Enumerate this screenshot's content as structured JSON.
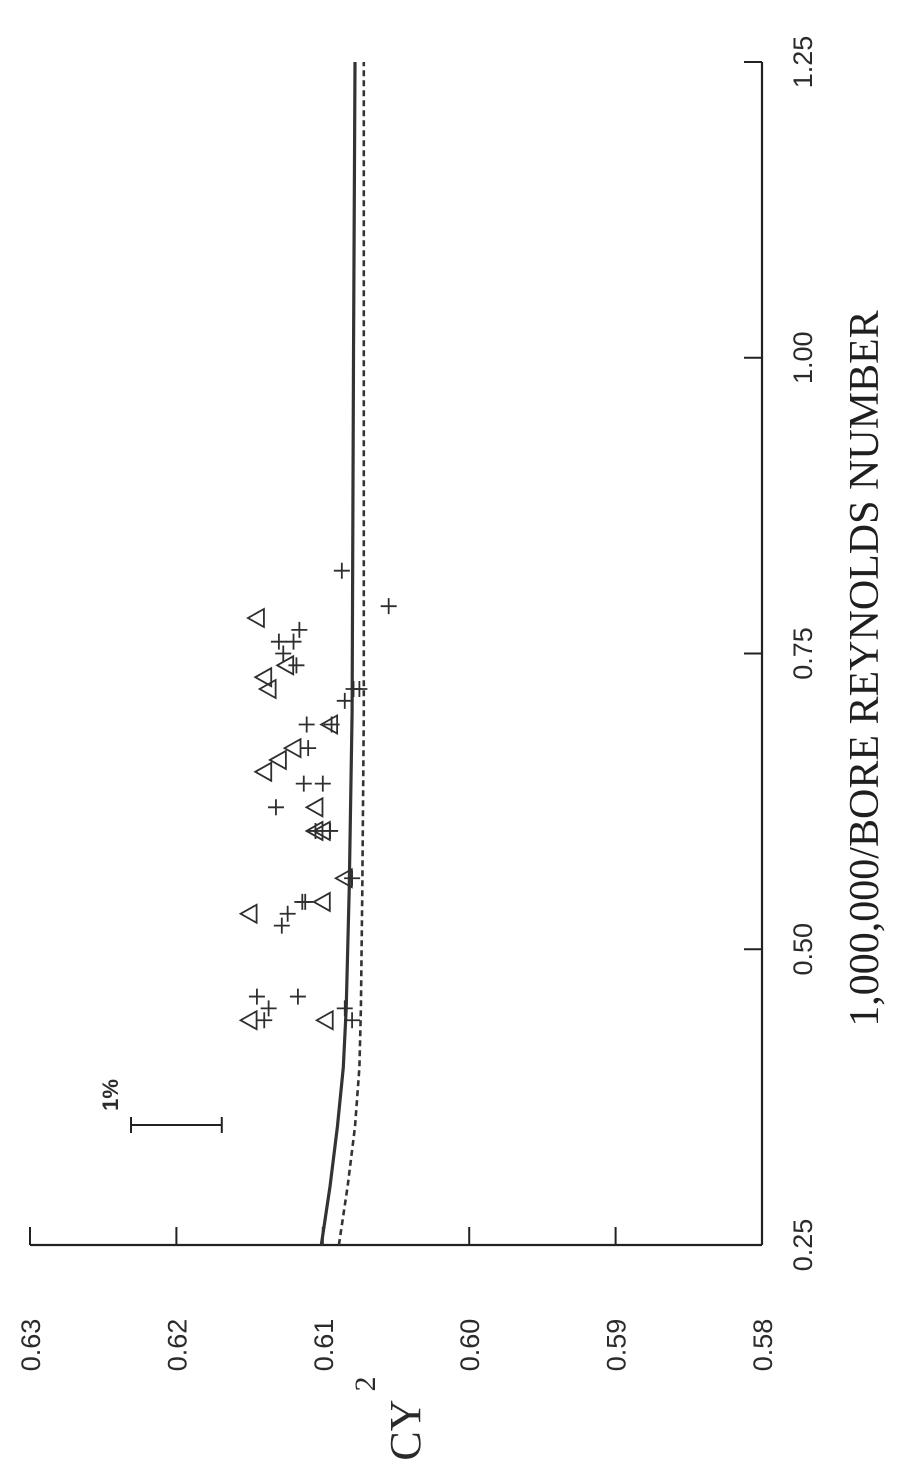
{
  "chart_data": {
    "type": "scatter",
    "title": "",
    "xlabel": "1,000,000/BORE REYNOLDS NUMBER",
    "ylabel": "CY",
    "ylabel_subscript": "2",
    "xlim": [
      0.25,
      1.25
    ],
    "ylim": [
      0.58,
      0.63
    ],
    "x_ticks": [
      "0.25",
      "0.50",
      "0.75",
      "1.00",
      "1.25"
    ],
    "y_ticks": [
      "0.58",
      "0.59",
      "0.60",
      "0.61",
      "0.62",
      "0.63"
    ],
    "scale_bar_label": "1%",
    "orientation": "rotated 90° counter-clockwise",
    "lines": [
      {
        "style": "solid",
        "x": [
          0.25,
          0.3,
          0.35,
          0.4,
          0.45,
          0.55,
          0.7,
          1.0,
          1.25
        ],
        "y": [
          0.6101,
          0.6095,
          0.609,
          0.6086,
          0.6084,
          0.6082,
          0.608,
          0.6079,
          0.6078
        ]
      },
      {
        "style": "dashed",
        "x": [
          0.25,
          0.3,
          0.35,
          0.4,
          0.45,
          0.55,
          0.7,
          1.0,
          1.25
        ],
        "y": [
          0.6089,
          0.6083,
          0.6078,
          0.6075,
          0.6074,
          0.6073,
          0.6072,
          0.6072,
          0.6072
        ]
      }
    ],
    "series": [
      {
        "marker": "cross",
        "x": [
          0.44,
          0.45,
          0.46,
          0.44,
          0.45,
          0.46,
          0.52,
          0.53,
          0.54,
          0.54,
          0.56,
          0.6,
          0.6,
          0.62,
          0.64,
          0.64,
          0.67,
          0.69,
          0.69,
          0.71,
          0.72,
          0.74,
          0.75,
          0.76,
          0.76,
          0.77,
          0.79,
          0.82,
          0.72
        ],
        "y": [
          0.614,
          0.6137,
          0.6145,
          0.608,
          0.6085,
          0.6117,
          0.6128,
          0.6124,
          0.6114,
          0.6112,
          0.608,
          0.6105,
          0.6095,
          0.6132,
          0.61,
          0.6113,
          0.611,
          0.6094,
          0.6111,
          0.6085,
          0.6075,
          0.6118,
          0.6127,
          0.613,
          0.612,
          0.6116,
          0.6055,
          0.6087,
          0.6079
        ]
      },
      {
        "marker": "triangle",
        "x": [
          0.44,
          0.44,
          0.53,
          0.54,
          0.56,
          0.6,
          0.6,
          0.62,
          0.65,
          0.66,
          0.67,
          0.69,
          0.72,
          0.73,
          0.74,
          0.78
        ],
        "y": [
          0.615,
          0.6098,
          0.615,
          0.61,
          0.6085,
          0.6105,
          0.61,
          0.6105,
          0.614,
          0.613,
          0.612,
          0.6095,
          0.6137,
          0.614,
          0.6125,
          0.6145
        ]
      }
    ]
  }
}
